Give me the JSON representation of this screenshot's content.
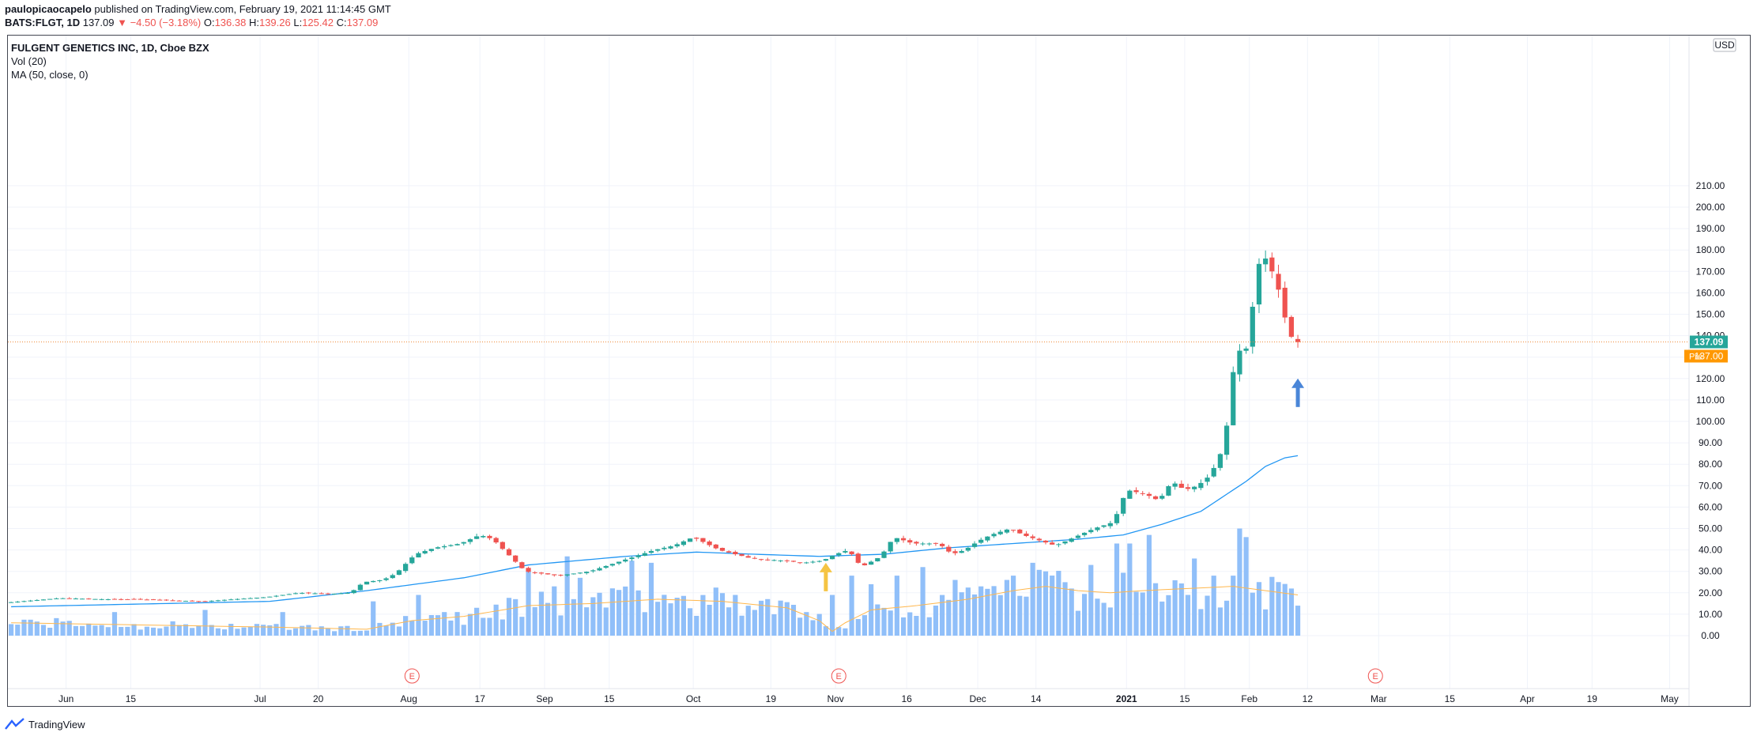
{
  "header": {
    "publisher": "paulopicaocapelo",
    "published_text": " published on TradingView.com, February 19, 2021 11:14:45 GMT",
    "symbol": "BATS:FLGT, 1D",
    "last": "137.09",
    "change": "▼ −4.50 (−3.18%)",
    "o_label": "O:",
    "o_val": "136.38",
    "h_label": "H:",
    "h_val": "139.26",
    "l_label": "L:",
    "l_val": "125.42",
    "c_label": "C:",
    "c_val": "137.09"
  },
  "legend": {
    "title": "FULGENT GENETICS INC, 1D, Cboe BZX",
    "vol": "Vol (20)",
    "ma": "MA (50, close, 0)"
  },
  "footer": {
    "brand": "TradingView"
  },
  "price_axis": {
    "currency": "USD",
    "last_price_badge": "137.09",
    "pre_label": "Pre",
    "pre_price_badge": "137.00"
  },
  "earnings_marker": "E",
  "colors": {
    "up": "#26a69a",
    "down": "#ef5350",
    "volume": "#90bff9",
    "ma": "#2196f3",
    "vol_ma": "#ffb74d",
    "pre": "#ff9800",
    "arrow_yellow": "#f5c443",
    "arrow_blue": "#4a86d8"
  },
  "chart_data": {
    "type": "candlestick",
    "title": "FULGENT GENETICS INC, 1D, Cboe BZX",
    "y_ticks": [
      "0.00",
      "10.00",
      "20.00",
      "30.00",
      "40.00",
      "50.00",
      "60.00",
      "70.00",
      "80.00",
      "90.00",
      "100.00",
      "110.00",
      "120.00",
      "130.00",
      "140.00",
      "150.00",
      "160.00",
      "170.00",
      "180.00",
      "190.00",
      "200.00",
      "210.00"
    ],
    "x_ticks": [
      {
        "label": "Jun",
        "d": 9
      },
      {
        "label": "15",
        "d": 19
      },
      {
        "label": "Jul",
        "d": 39
      },
      {
        "label": "20",
        "d": 48
      },
      {
        "label": "Aug",
        "d": 62
      },
      {
        "label": "17",
        "d": 73
      },
      {
        "label": "Sep",
        "d": 83
      },
      {
        "label": "15",
        "d": 93
      },
      {
        "label": "Oct",
        "d": 106
      },
      {
        "label": "19",
        "d": 118
      },
      {
        "label": "Nov",
        "d": 128
      },
      {
        "label": "16",
        "d": 139
      },
      {
        "label": "Dec",
        "d": 150
      },
      {
        "label": "14",
        "d": 159
      },
      {
        "label": "2021",
        "d": 173,
        "bold": true
      },
      {
        "label": "15",
        "d": 182
      },
      {
        "label": "Feb",
        "d": 192
      },
      {
        "label": "12",
        "d": 201
      },
      {
        "label": "Mar",
        "d": 212
      },
      {
        "label": "15",
        "d": 223
      },
      {
        "label": "Apr",
        "d": 235
      },
      {
        "label": "19",
        "d": 245
      },
      {
        "label": "May",
        "d": 257
      }
    ],
    "x_range": [
      0,
      260
    ],
    "ylim": [
      0,
      210
    ],
    "volume_max": 50,
    "price_anchors": [
      [
        0,
        15.5
      ],
      [
        8,
        17.5
      ],
      [
        15,
        17
      ],
      [
        20,
        17
      ],
      [
        30,
        16
      ],
      [
        35,
        17
      ],
      [
        40,
        18
      ],
      [
        45,
        20
      ],
      [
        50,
        19.5
      ],
      [
        53,
        20
      ],
      [
        55,
        25
      ],
      [
        58,
        26
      ],
      [
        60,
        29
      ],
      [
        63,
        38
      ],
      [
        66,
        41
      ],
      [
        68,
        42
      ],
      [
        70,
        43
      ],
      [
        73,
        47
      ],
      [
        75,
        45
      ],
      [
        80,
        30
      ],
      [
        85,
        28
      ],
      [
        90,
        30
      ],
      [
        95,
        35
      ],
      [
        98,
        38
      ],
      [
        100,
        40
      ],
      [
        103,
        42
      ],
      [
        106,
        46
      ],
      [
        110,
        40
      ],
      [
        115,
        36
      ],
      [
        120,
        35
      ],
      [
        123,
        34
      ],
      [
        126,
        35
      ],
      [
        128,
        38
      ],
      [
        130,
        40
      ],
      [
        132,
        32
      ],
      [
        135,
        37
      ],
      [
        137,
        46
      ],
      [
        140,
        43
      ],
      [
        144,
        43
      ],
      [
        146,
        38
      ],
      [
        148,
        40
      ],
      [
        150,
        44
      ],
      [
        152,
        47
      ],
      [
        155,
        50
      ],
      [
        157,
        47
      ],
      [
        160,
        44
      ],
      [
        162,
        42
      ],
      [
        165,
        46
      ],
      [
        168,
        50
      ],
      [
        171,
        53
      ],
      [
        173,
        68
      ],
      [
        176,
        66
      ],
      [
        178,
        63
      ],
      [
        180,
        72
      ],
      [
        182,
        68
      ],
      [
        184,
        70
      ],
      [
        186,
        75
      ],
      [
        188,
        88
      ],
      [
        189,
        108
      ],
      [
        190,
        138
      ],
      [
        191,
        128
      ],
      [
        192,
        140
      ],
      [
        193,
        167
      ],
      [
        194,
        180
      ],
      [
        195,
        172
      ],
      [
        196,
        168
      ],
      [
        197,
        155
      ],
      [
        198,
        142
      ],
      [
        199,
        137
      ]
    ],
    "ma50_anchors": [
      [
        0,
        13.5
      ],
      [
        40,
        16
      ],
      [
        55,
        21
      ],
      [
        70,
        27
      ],
      [
        80,
        33
      ],
      [
        95,
        37
      ],
      [
        106,
        39
      ],
      [
        115,
        38
      ],
      [
        125,
        37
      ],
      [
        135,
        38
      ],
      [
        145,
        41
      ],
      [
        155,
        43
      ],
      [
        165,
        45
      ],
      [
        172,
        47
      ],
      [
        178,
        52
      ],
      [
        184,
        58
      ],
      [
        188,
        66
      ],
      [
        191,
        72
      ],
      [
        194,
        79
      ],
      [
        197,
        83
      ],
      [
        199,
        84
      ]
    ],
    "volume_ma_anchors": [
      [
        0,
        6
      ],
      [
        40,
        4
      ],
      [
        55,
        3
      ],
      [
        62,
        7
      ],
      [
        70,
        9
      ],
      [
        80,
        14
      ],
      [
        90,
        15
      ],
      [
        100,
        17
      ],
      [
        110,
        16
      ],
      [
        120,
        13
      ],
      [
        125,
        7
      ],
      [
        127,
        2
      ],
      [
        129,
        6
      ],
      [
        133,
        12
      ],
      [
        140,
        14
      ],
      [
        148,
        17
      ],
      [
        155,
        21
      ],
      [
        160,
        23
      ],
      [
        165,
        21
      ],
      [
        170,
        20
      ],
      [
        175,
        21
      ],
      [
        182,
        22
      ],
      [
        189,
        23
      ],
      [
        194,
        21
      ],
      [
        199,
        19
      ]
    ],
    "volume_spikes": [
      [
        16,
        11
      ],
      [
        30,
        12
      ],
      [
        42,
        11
      ],
      [
        56,
        16
      ],
      [
        63,
        19
      ],
      [
        67,
        11
      ],
      [
        80,
        30
      ],
      [
        84,
        23
      ],
      [
        86,
        37
      ],
      [
        88,
        27
      ],
      [
        91,
        20
      ],
      [
        96,
        35
      ],
      [
        99,
        34
      ],
      [
        112,
        19
      ],
      [
        115,
        12
      ],
      [
        127,
        19
      ],
      [
        130,
        28
      ],
      [
        133,
        24
      ],
      [
        137,
        28
      ],
      [
        141,
        32
      ],
      [
        146,
        26
      ],
      [
        150,
        23
      ],
      [
        155,
        28
      ],
      [
        158,
        34
      ],
      [
        160,
        30
      ],
      [
        164,
        22
      ],
      [
        167,
        33
      ],
      [
        171,
        43
      ],
      [
        173,
        43
      ],
      [
        176,
        47
      ],
      [
        183,
        36
      ],
      [
        186,
        28
      ],
      [
        189,
        28
      ],
      [
        190,
        50
      ],
      [
        191,
        46
      ],
      [
        193,
        25
      ],
      [
        196,
        25
      ],
      [
        198,
        22
      ],
      [
        199,
        14
      ]
    ],
    "earnings_days": [
      62,
      128,
      211
    ],
    "arrows": [
      {
        "d": 126,
        "price": 34,
        "direction": "up",
        "color": "#f5c443"
      },
      {
        "d": 199,
        "price": 120,
        "direction": "up",
        "color": "#4a86d8"
      }
    ]
  }
}
